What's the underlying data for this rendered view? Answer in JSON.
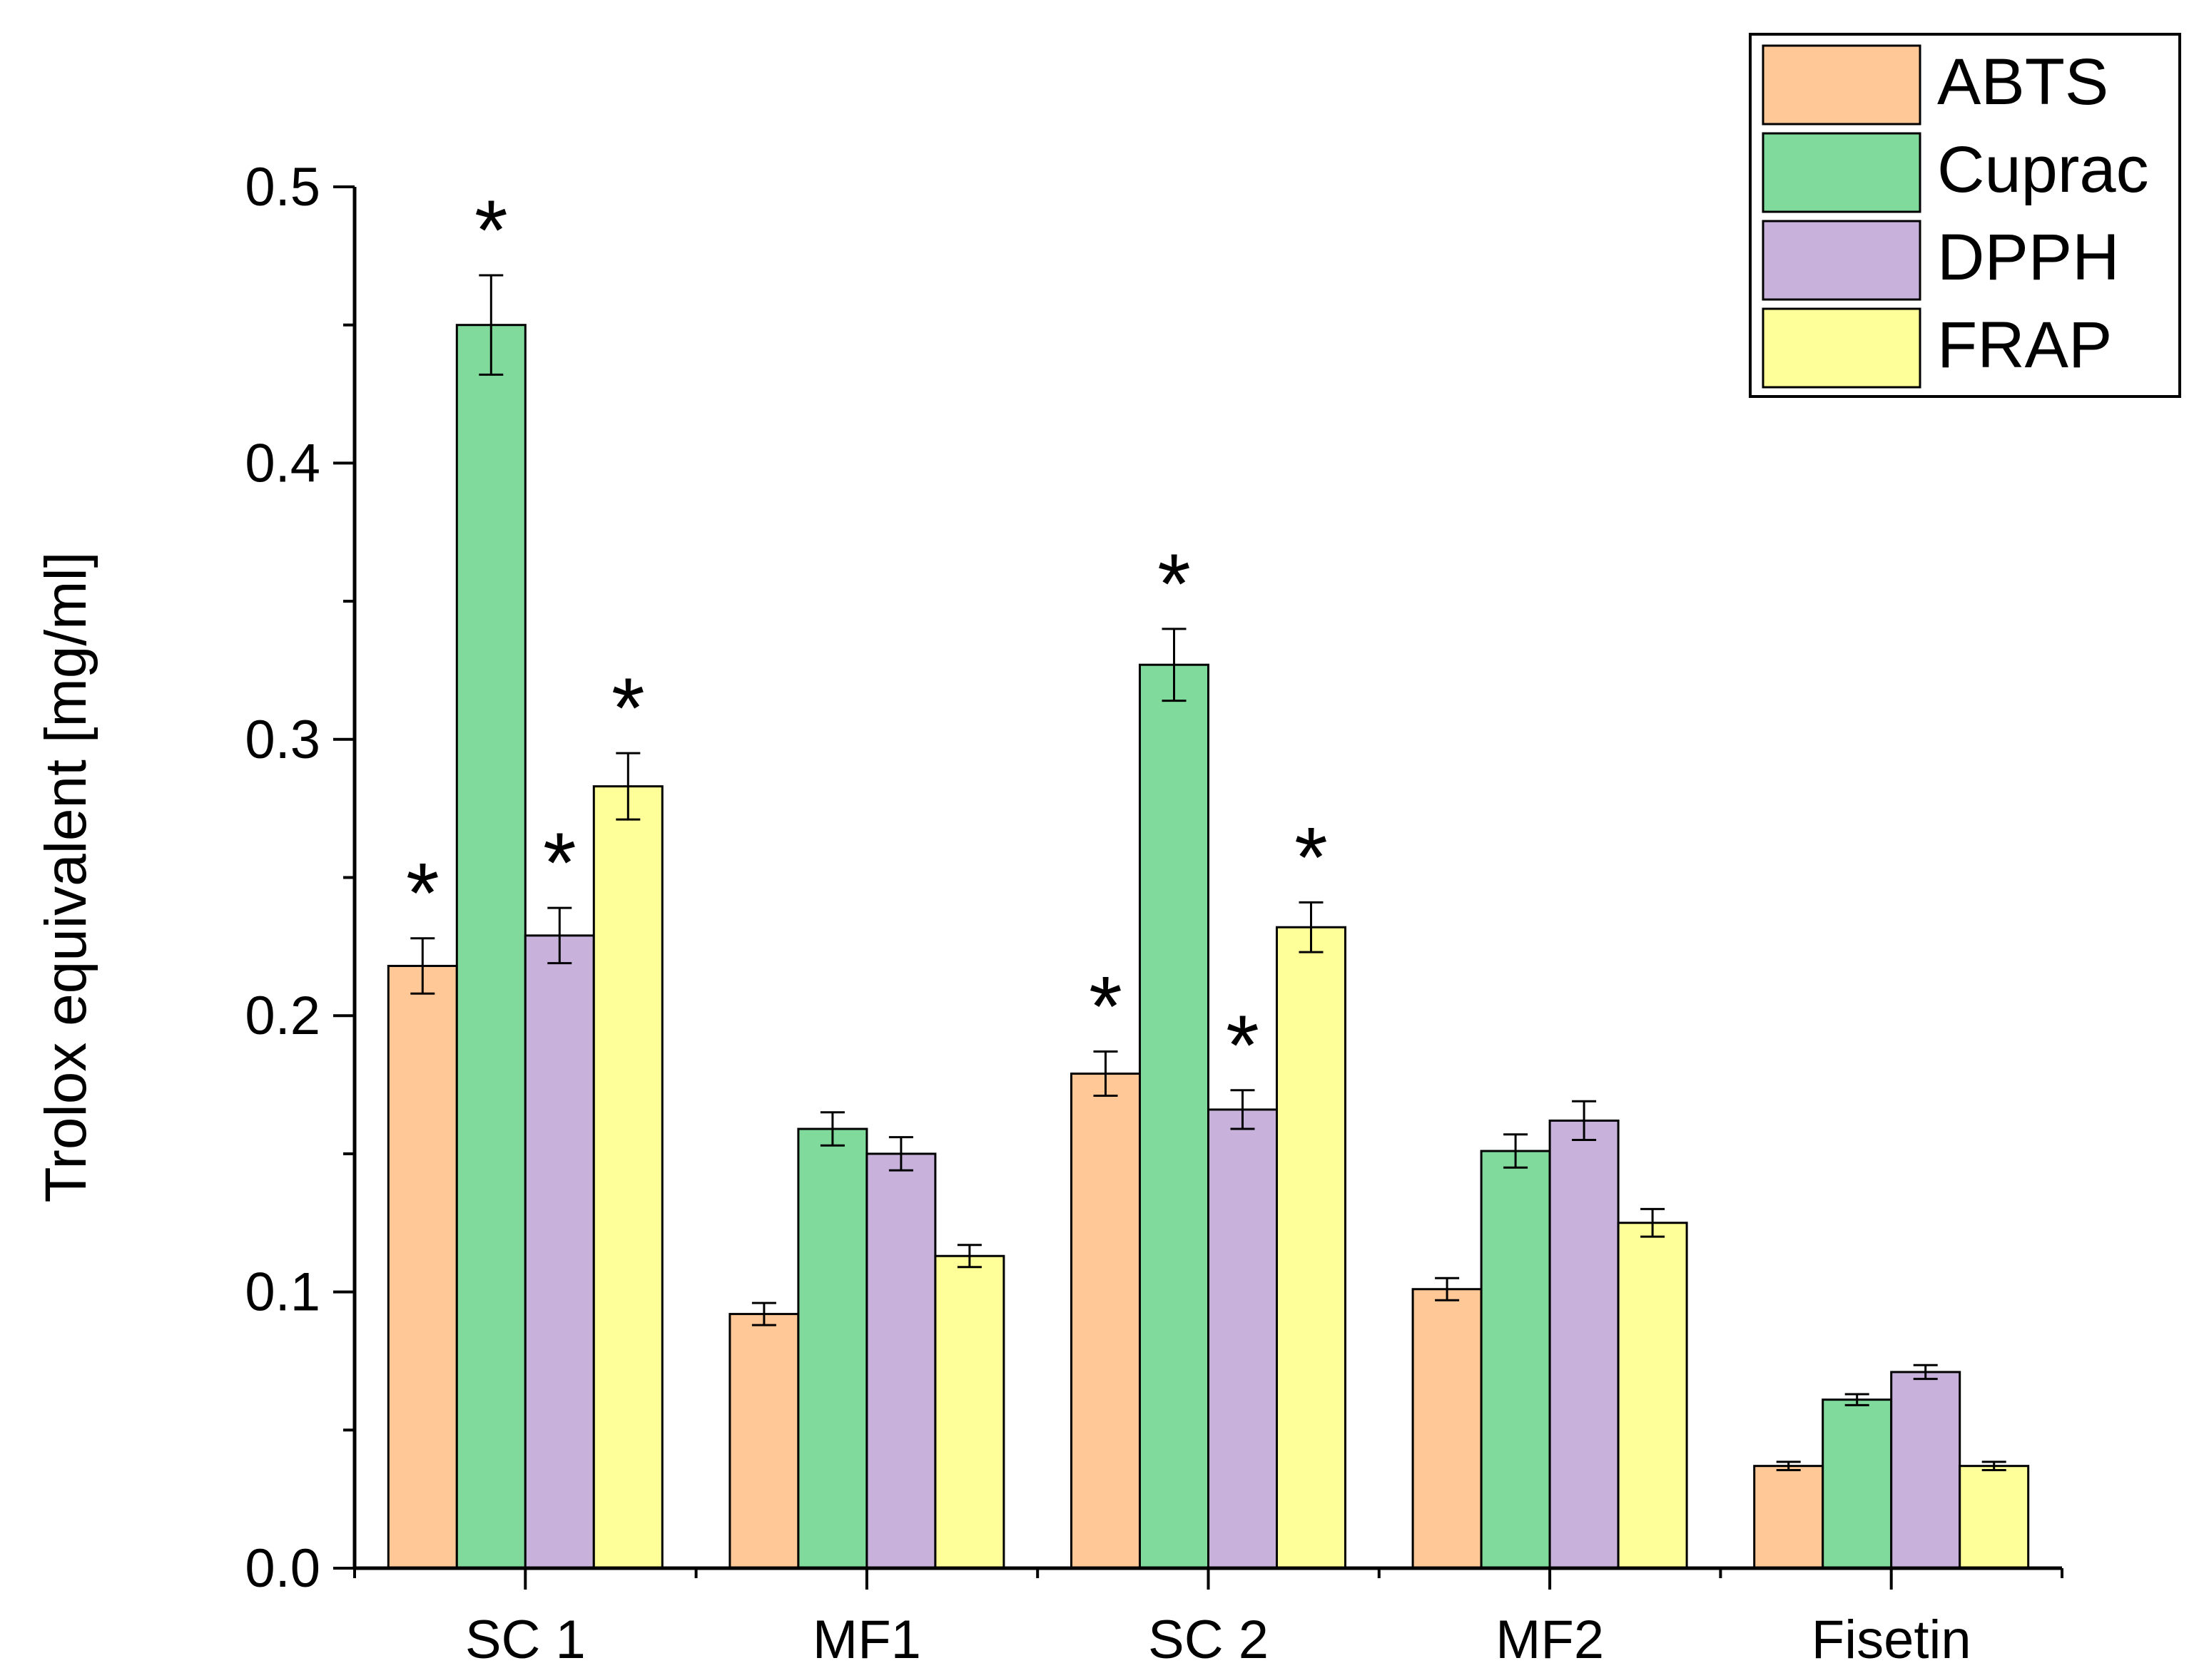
{
  "chart_data": {
    "type": "bar",
    "title": "",
    "xlabel": "",
    "ylabel": "Trolox equivalent [mg/ml]",
    "ylim": [
      0,
      0.5
    ],
    "yticks": [
      0.0,
      0.1,
      0.2,
      0.3,
      0.4,
      0.5
    ],
    "ytick_labels": [
      "0.0",
      "0.1",
      "0.2",
      "0.3",
      "0.4",
      "0.5"
    ],
    "categories": [
      "SC 1",
      "MF1",
      "SC 2",
      "MF2",
      "Fisetin"
    ],
    "grid": false,
    "legend_position": "top-right",
    "significance_marker": "*",
    "series": [
      {
        "name": "ABTS",
        "color": "#FFC896",
        "values": [
          0.218,
          0.092,
          0.179,
          0.101,
          0.037
        ],
        "errors": [
          0.01,
          0.004,
          0.008,
          0.004,
          0.0015
        ],
        "significant": [
          true,
          false,
          true,
          false,
          false
        ]
      },
      {
        "name": "Cuprac",
        "color": "#80DA9C",
        "values": [
          0.45,
          0.159,
          0.327,
          0.151,
          0.061
        ],
        "errors": [
          0.018,
          0.006,
          0.013,
          0.006,
          0.002
        ],
        "significant": [
          true,
          false,
          true,
          false,
          false
        ]
      },
      {
        "name": "DPPH",
        "color": "#C8B2DC",
        "values": [
          0.229,
          0.15,
          0.166,
          0.162,
          0.071
        ],
        "errors": [
          0.01,
          0.006,
          0.007,
          0.007,
          0.0025
        ],
        "significant": [
          true,
          false,
          true,
          false,
          false
        ]
      },
      {
        "name": "FRAP",
        "color": "#FFFF99",
        "values": [
          0.283,
          0.113,
          0.232,
          0.125,
          0.037
        ],
        "errors": [
          0.012,
          0.004,
          0.009,
          0.005,
          0.0015
        ],
        "significant": [
          true,
          false,
          true,
          false,
          false
        ]
      }
    ]
  }
}
